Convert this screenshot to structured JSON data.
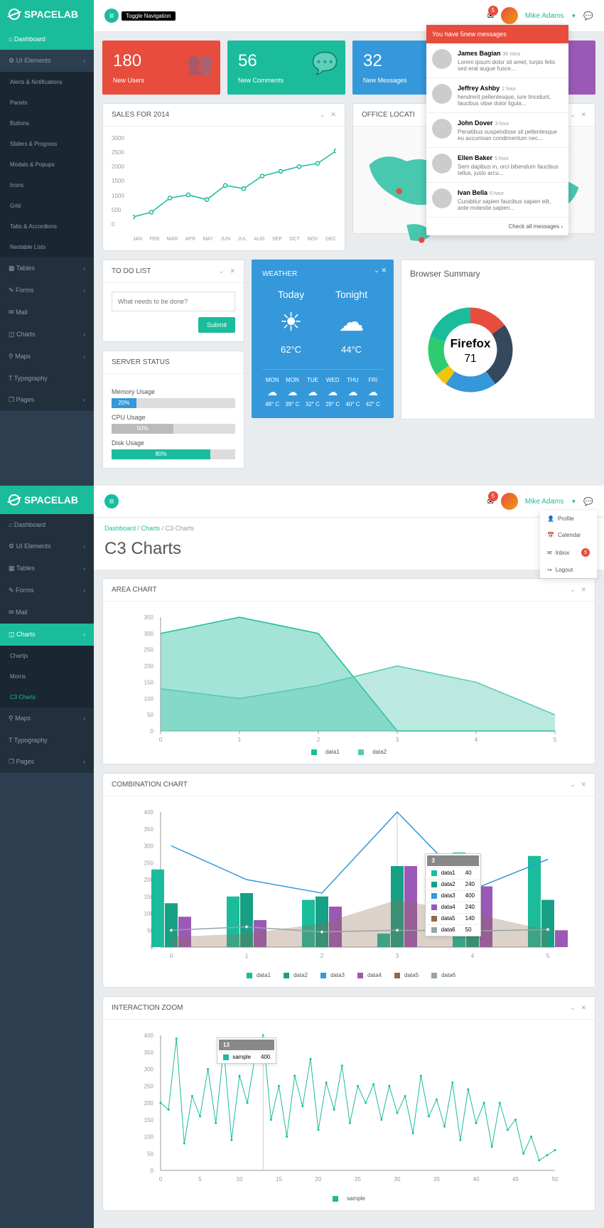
{
  "brand": "SPACELAB",
  "topbar": {
    "toggle_label": "Toggle Navigation",
    "mail_badge": "5",
    "username": "Mike Adams"
  },
  "sidebar1": [
    {
      "label": "Dashboard",
      "active": true,
      "icon": "⌂"
    },
    {
      "label": "UI Elements",
      "chev": true,
      "icon": "⚙"
    },
    {
      "label": "Alerts & Notifications",
      "sub": true
    },
    {
      "label": "Panels",
      "sub": true
    },
    {
      "label": "Buttons",
      "sub": true
    },
    {
      "label": "Sliders & Progress",
      "sub": true
    },
    {
      "label": "Modals & Popups",
      "sub": true
    },
    {
      "label": "Icons",
      "sub": true
    },
    {
      "label": "Grid",
      "sub": true
    },
    {
      "label": "Tabs & Accordions",
      "sub": true
    },
    {
      "label": "Nestable Lists",
      "sub": true
    },
    {
      "label": "Tables",
      "chev": true,
      "dark": true,
      "icon": "▦"
    },
    {
      "label": "Forms",
      "chev": true,
      "dark": true,
      "icon": "✎"
    },
    {
      "label": "Mail",
      "dark": true,
      "icon": "✉"
    },
    {
      "label": "Charts",
      "chev": true,
      "dark": true,
      "icon": "◫"
    },
    {
      "label": "Maps",
      "chev": true,
      "dark": true,
      "icon": "⚲"
    },
    {
      "label": "Typography",
      "dark": true,
      "icon": "T"
    },
    {
      "label": "Pages",
      "chev": true,
      "dark": true,
      "icon": "❐"
    }
  ],
  "sidebar2": [
    {
      "label": "Dashboard",
      "icon": "⌂",
      "dark": true
    },
    {
      "label": "UI Elements",
      "chev": true,
      "icon": "⚙",
      "dark": true
    },
    {
      "label": "Tables",
      "chev": true,
      "dark": true,
      "icon": "▦"
    },
    {
      "label": "Forms",
      "chev": true,
      "dark": true,
      "icon": "✎"
    },
    {
      "label": "Mail",
      "dark": true,
      "icon": "✉"
    },
    {
      "label": "Charts",
      "chev": true,
      "active": true,
      "icon": "◫"
    },
    {
      "label": "Chartjs",
      "sub": true
    },
    {
      "label": "Morris",
      "sub": true
    },
    {
      "label": "C3 Charts",
      "sub": true,
      "highlight": true
    },
    {
      "label": "Maps",
      "chev": true,
      "dark": true,
      "icon": "⚲"
    },
    {
      "label": "Typography",
      "dark": true,
      "icon": "T"
    },
    {
      "label": "Pages",
      "chev": true,
      "dark": true,
      "icon": "❐"
    }
  ],
  "stats": [
    {
      "num": "180",
      "label": "New Users",
      "color": "#e74c3c",
      "icon": "👥"
    },
    {
      "num": "56",
      "label": "New Comments",
      "color": "#1abc9c",
      "icon": "💬"
    },
    {
      "num": "32",
      "label": "New Messages",
      "color": "#3498db",
      "icon": "✉"
    },
    {
      "num": "",
      "label": "",
      "color": "#9b59b6",
      "icon": ""
    }
  ],
  "messages": {
    "header": "You have 5new messages",
    "items": [
      {
        "name": "James Bagian",
        "time": "30 mins",
        "text": "Lorem ipsum dolor sit amet, turpis felis sed erat augue fusce..."
      },
      {
        "name": "Jeffrey Ashby",
        "time": "2 hour",
        "text": "hendrerit pellentesque, iure tincidunt, faucibus vitae dolor ligula..."
      },
      {
        "name": "John Dover",
        "time": "3 hour",
        "text": "Penatibus suspendisse sit pellentesque eu accumsan condimentum nec..."
      },
      {
        "name": "Ellen Baker",
        "time": "5 hour",
        "text": "Sem dapibus in, orci bibendum faucibus tellus, justo arcu..."
      },
      {
        "name": "Ivan Bella",
        "time": "6 hour",
        "text": "Curabitur sapien faucibus sapien elit, ante molestie sapien..."
      }
    ],
    "footer": "Check all messages ›"
  },
  "user_menu": [
    {
      "icon": "👤",
      "label": "Profile"
    },
    {
      "icon": "📅",
      "label": "Calendar"
    },
    {
      "icon": "✉",
      "label": "Inbox",
      "badge": "5"
    },
    {
      "icon": "↪",
      "label": "Logout"
    }
  ],
  "sales_chart": {
    "title": "SALES FOR 2014",
    "y_labels": [
      "3000",
      "2500",
      "2000",
      "1500",
      "1000",
      "500",
      "0"
    ],
    "x_labels": [
      "JAN",
      "FEB",
      "MAR",
      "APR",
      "MAY",
      "JUN",
      "JUL",
      "AUG",
      "SEP",
      "OCT",
      "NOV",
      "DEC"
    ],
    "values": [
      400,
      550,
      1000,
      1100,
      950,
      1400,
      1300,
      1700,
      1850,
      2000,
      2100,
      2500
    ],
    "color": "#1abc9c",
    "y_max": 3000
  },
  "office_title": "OFFICE LOCATI",
  "todo": {
    "title": "TO DO LIST",
    "placeholder": "What needs to be done?",
    "submit": "Submit"
  },
  "server": {
    "title": "SERVER STATUS",
    "bars": [
      {
        "label": "Memory Usage",
        "pct": 20,
        "text": "20%",
        "color": "#3498db"
      },
      {
        "label": "CPU Usage",
        "pct": 50,
        "text": "50%",
        "color": "#bbb"
      },
      {
        "label": "Disk Usage",
        "pct": 80,
        "text": "80%",
        "color": "#1abc9c"
      }
    ]
  },
  "weather": {
    "title": "WEATHER",
    "today": {
      "label": "Today",
      "temp": "62°C"
    },
    "tonight": {
      "label": "Tonight",
      "temp": "44°C"
    },
    "days": [
      {
        "day": "MON",
        "temp": "48° C"
      },
      {
        "day": "MON",
        "temp": "39° C"
      },
      {
        "day": "TUE",
        "temp": "32° C"
      },
      {
        "day": "WED",
        "temp": "28° C"
      },
      {
        "day": "THU",
        "temp": "40° C"
      },
      {
        "day": "FRI",
        "temp": "42° C"
      }
    ]
  },
  "browser": {
    "title": "Browser Summary",
    "center_label": "Firefox",
    "center_value": "71",
    "slices": [
      {
        "color": "#e74c3c",
        "pct": 15
      },
      {
        "color": "#34495e",
        "pct": 25
      },
      {
        "color": "#3498db",
        "pct": 20
      },
      {
        "color": "#f1c40f",
        "pct": 5
      },
      {
        "color": "#2ecc71",
        "pct": 15
      },
      {
        "color": "#1abc9c",
        "pct": 20
      }
    ]
  },
  "breadcrumb": {
    "items": [
      "Dashboard",
      "Charts",
      "C3 Charts"
    ]
  },
  "page2_title": "C3 Charts",
  "area_chart": {
    "title": "AREA CHART",
    "y_labels": [
      "350",
      "300",
      "250",
      "200",
      "150",
      "100",
      "50",
      "0"
    ],
    "x_labels": [
      "0",
      "1",
      "2",
      "3",
      "4",
      "5"
    ],
    "series": [
      {
        "name": "data1",
        "color": "#1abc9c",
        "values": [
          300,
          350,
          300,
          0,
          0,
          0
        ]
      },
      {
        "name": "data2",
        "color": "#55c9b1",
        "values": [
          130,
          100,
          140,
          200,
          150,
          50
        ]
      }
    ]
  },
  "combo_chart": {
    "title": "COMBINATION CHART",
    "y_labels": [
      "400",
      "350",
      "300",
      "250",
      "200",
      "150",
      "100",
      "50",
      "0"
    ],
    "x_labels": [
      "0",
      "1",
      "2",
      "3",
      "4",
      "5"
    ],
    "tooltip": {
      "x": "3",
      "rows": [
        [
          "data1",
          "40"
        ],
        [
          "data2",
          "240"
        ],
        [
          "data3",
          "400"
        ],
        [
          "data4",
          "240"
        ],
        [
          "data5",
          "140"
        ],
        [
          "data6",
          "50"
        ]
      ]
    },
    "legend": [
      "data1",
      "data2",
      "data3",
      "data4",
      "data5",
      "data6"
    ],
    "colors": {
      "data1": "#1abc9c",
      "data2": "#16a085",
      "data3": "#3498db",
      "data4": "#9b59b6",
      "data5": "#8e6b4e",
      "data6": "#95a5a6"
    }
  },
  "zoom_chart": {
    "title": "INTERACTION ZOOM",
    "tooltip": {
      "x": "13",
      "sample": "400"
    },
    "y_labels": [
      "400",
      "350",
      "300",
      "250",
      "200",
      "150",
      "100",
      "50",
      "0"
    ],
    "legend": "sample",
    "color": "#1abc9c"
  }
}
